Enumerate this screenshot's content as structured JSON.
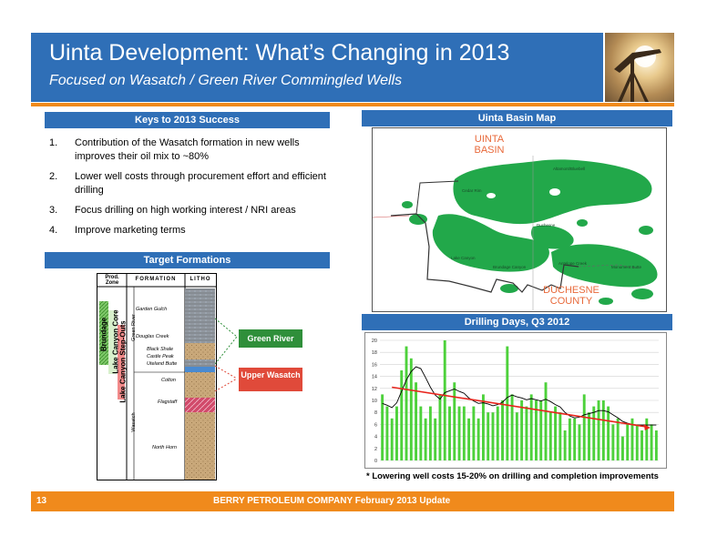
{
  "header": {
    "title": "Uinta Development: What’s Changing in 2013",
    "subtitle": "Focused on Wasatch / Green River Commingled Wells"
  },
  "keys": {
    "heading": "Keys to 2013 Success",
    "items": [
      {
        "num": "1.",
        "text": "Contribution of the Wasatch formation in new wells improves their oil mix to ~80%"
      },
      {
        "num": "2.",
        "text": "Lower well costs through procurement effort and efficient drilling"
      },
      {
        "num": "3.",
        "text": "Focus drilling on high working interest / NRI areas"
      },
      {
        "num": "4.",
        "text": "Improve marketing terms"
      }
    ]
  },
  "formations": {
    "heading": "Target Formations",
    "col_prod_zone": "Prod. Zone",
    "col_formation": "FORMATION",
    "col_litho": "LITHO",
    "zone_labels": [
      "Brundage",
      "Lake Canyon Core",
      "Lake Canyon Step-Outs"
    ],
    "group_labels": [
      "Green River",
      "Wasatch"
    ],
    "members": [
      "Garden Gulch",
      "Douglas Creek",
      "Black Shale",
      "Castle Peak",
      "Uteland Butte",
      "Colton",
      "Flagstaff",
      "North Horn"
    ],
    "callout_green": "Green River",
    "callout_red": "Upper Wasatch",
    "colors": {
      "green": "#2f8f3a",
      "red": "#e04a3a"
    }
  },
  "map": {
    "heading": "Uinta Basin Map",
    "label_basin": "UINTA BASIN",
    "label_county": "DUCHESNE COUNTY",
    "fields": [
      "Altamont/Bluebell",
      "Cedar Rim",
      "Duchesne",
      "Lake Canyon",
      "Brundage Canyon",
      "Antelope Creek",
      "Monument Butte"
    ],
    "colors": {
      "fields": "#22a84a",
      "labels": "#e8693a"
    }
  },
  "drilling": {
    "heading": "Drilling Days, Q3 2012",
    "footnote": "* Lowering well costs 15-20% on drilling and completion improvements"
  },
  "chart_data": {
    "type": "bar",
    "title": "Drilling Days, Q3 2012",
    "xlabel": "",
    "ylabel": "",
    "ylim": [
      0,
      20
    ],
    "yticks": [
      0,
      2,
      4,
      6,
      8,
      10,
      12,
      14,
      16,
      18,
      20
    ],
    "grid": true,
    "colors": {
      "bars": "#4dd13b",
      "moving_avg": "#000000",
      "trend": "#e8241c"
    },
    "series": [
      {
        "values": [
          11,
          9,
          7,
          9,
          15,
          19,
          17,
          13,
          9,
          7,
          9,
          7,
          11,
          20,
          9,
          13,
          9,
          9,
          7,
          9,
          7,
          11,
          8,
          8,
          9,
          10,
          19,
          11,
          8,
          10,
          9,
          11,
          10,
          10,
          13,
          8,
          9,
          8,
          5,
          7,
          7,
          6,
          11,
          8,
          9,
          10,
          10,
          9,
          6,
          7,
          4,
          6,
          7,
          6,
          5,
          7,
          6,
          5
        ]
      },
      {
        "values": [
          9.5,
          9.2,
          8.8,
          9.6,
          11.5,
          13.4,
          14.8,
          15.6,
          15.3,
          13.8,
          12.2,
          10.9,
          10.2,
          11.3,
          11.6,
          11.9,
          11.5,
          11.2,
          10.4,
          9.9,
          9.5,
          9.6,
          9.4,
          9.1,
          9.3,
          9.7,
          10.5,
          10.9,
          10.6,
          10.4,
          10.1,
          10.3,
          10.1,
          9.9,
          10.2,
          9.8,
          9.3,
          8.9,
          8.0,
          7.4,
          7.1,
          7.2,
          7.6,
          7.8,
          8.0,
          8.3,
          8.3,
          8.1,
          7.6,
          7.1,
          6.5,
          6.2,
          6.0,
          5.9,
          5.9,
          5.9,
          5.9,
          5.9
        ]
      },
      {
        "values": [
          12.2,
          5.6
        ]
      }
    ]
  },
  "footer": {
    "page": "13",
    "company": "BERRY PETROLEUM COMPANY   February 2013 Update"
  }
}
